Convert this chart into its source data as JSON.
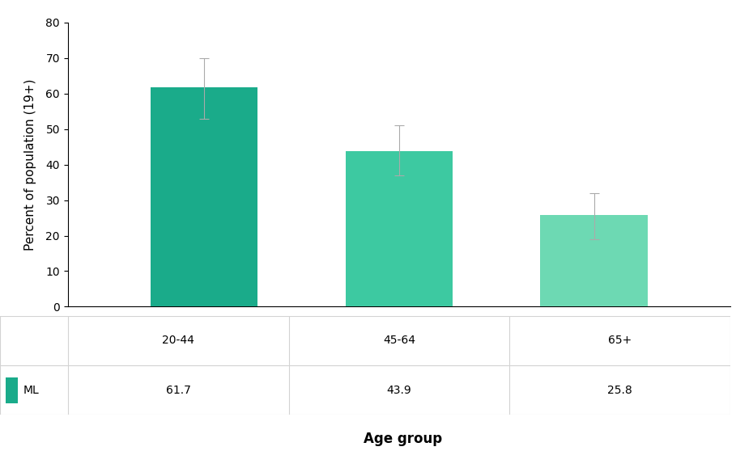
{
  "categories": [
    "20-44",
    "45-64",
    "65+"
  ],
  "values": [
    61.7,
    43.9,
    25.8
  ],
  "errors_upper": [
    8.3,
    7.1,
    6.2
  ],
  "errors_lower": [
    8.7,
    6.9,
    6.8
  ],
  "bar_colors": [
    "#1aab8a",
    "#3dc9a1",
    "#6dd9b3"
  ],
  "ylabel": "Percent of population (19+)",
  "xlabel": "Age group",
  "ylim": [
    0,
    80
  ],
  "yticks": [
    0,
    10,
    20,
    30,
    40,
    50,
    60,
    70,
    80
  ],
  "legend_label": "ML",
  "legend_color": "#1aab8a",
  "error_color": "#aaaaaa",
  "background_color": "#ffffff",
  "bar_width": 0.55
}
